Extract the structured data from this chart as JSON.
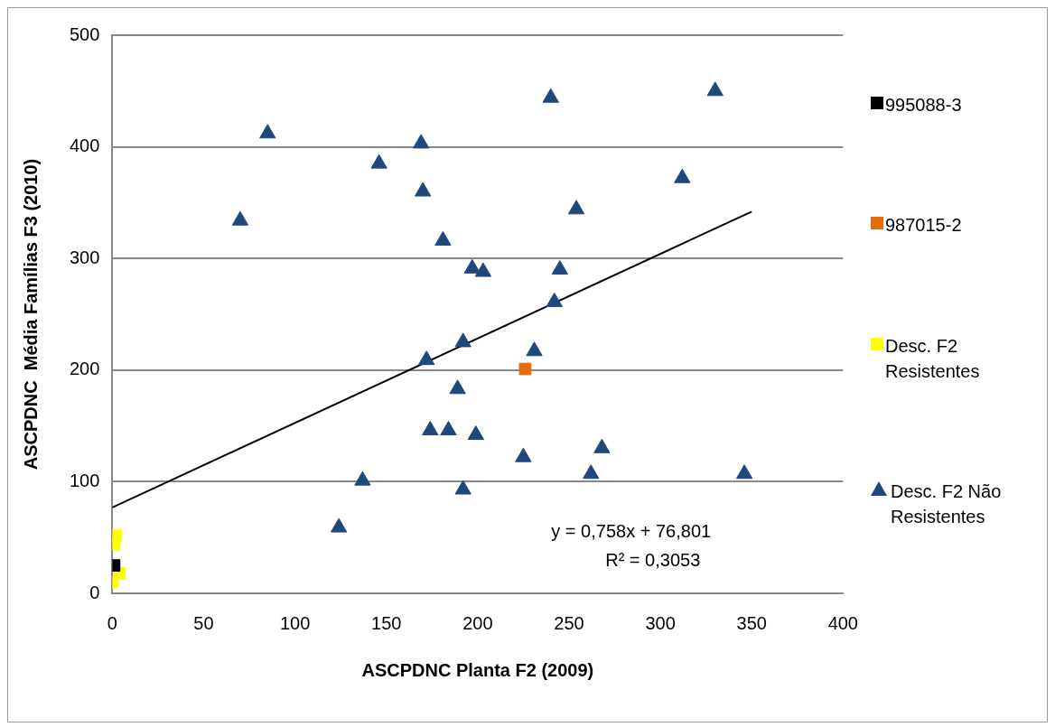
{
  "chart_data": {
    "type": "scatter",
    "xlabel": "ASCPDNC Planta F2 (2009)",
    "ylabel": "ASCPDNC  Média Famílias F3 (2010)",
    "xlim": [
      0,
      400
    ],
    "xticks": [
      0,
      50,
      100,
      150,
      200,
      250,
      300,
      350,
      400
    ],
    "ylim": [
      0,
      500
    ],
    "yticks": [
      0,
      100,
      200,
      300,
      400,
      500
    ],
    "grid": "y",
    "legend": "right",
    "annotations": [
      "y = 0,758x + 76,801",
      "R² = 0,3053"
    ],
    "series": [
      {
        "name": "995088-3",
        "color": "#000000",
        "marker": "square",
        "x": [
          1
        ],
        "values": [
          25
        ]
      },
      {
        "name": "987015-2",
        "color": "#e46c0a",
        "marker": "square",
        "x": [
          226
        ],
        "values": [
          201
        ]
      },
      {
        "name": "Desc. F2 Resistentes",
        "color": "#ffff00",
        "marker": "square",
        "x": [
          2,
          1,
          4,
          0
        ],
        "values": [
          52,
          44,
          18,
          10
        ]
      },
      {
        "name": "Desc. F2 Não Resistentes",
        "color": "#1f497d",
        "marker": "triangle",
        "x": [
          85,
          169,
          146,
          170,
          70,
          181,
          197,
          203,
          192,
          172,
          189,
          174,
          184,
          199,
          137,
          192,
          124,
          240,
          330,
          312,
          254,
          245,
          242,
          231,
          225,
          268,
          262,
          346
        ],
        "values": [
          412,
          403,
          385,
          360,
          334,
          316,
          291,
          288,
          225,
          209,
          183,
          146,
          146,
          142,
          101,
          93,
          59,
          444,
          450,
          372,
          344,
          290,
          261,
          217,
          122,
          130,
          107,
          107
        ]
      },
      {
        "type": "line",
        "color": "#000000",
        "marker": "none",
        "line_style": "solid",
        "x": [
          0,
          350
        ],
        "values": [
          77,
          342
        ]
      }
    ]
  }
}
